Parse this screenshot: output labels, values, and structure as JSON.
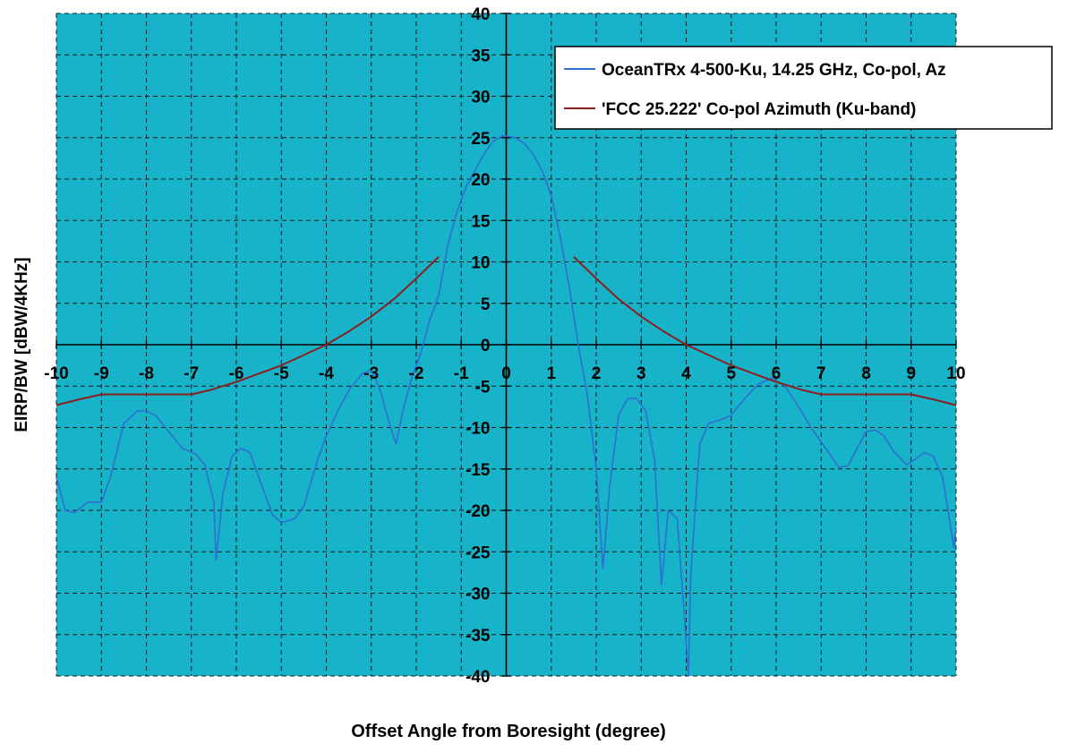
{
  "chart_data": {
    "type": "line",
    "title": "",
    "xlabel": "Offset Angle from Boresight (degree)",
    "ylabel": "EIRP/BW [dBW/4KHz]",
    "xlim": [
      -10,
      10
    ],
    "ylim": [
      -40,
      40
    ],
    "x_ticks": [
      -10,
      -9,
      -8,
      -7,
      -6,
      -5,
      -4,
      -3,
      -2,
      -1,
      0,
      1,
      2,
      3,
      4,
      5,
      6,
      7,
      8,
      9,
      10
    ],
    "y_ticks": [
      -40,
      -35,
      -30,
      -25,
      -20,
      -15,
      -10,
      -5,
      0,
      5,
      10,
      15,
      20,
      25,
      30,
      35,
      40
    ],
    "grid": true,
    "plot_background": "#17b3c8",
    "legend_position": "top-right",
    "series": [
      {
        "name": "OceanTRx 4-500-Ku, 14.25 GHz, Co-pol, Az",
        "color": "#2f6fd2",
        "points": [
          [
            -10,
            -16
          ],
          [
            -9.8,
            -20
          ],
          [
            -9.6,
            -20.3
          ],
          [
            -9.3,
            -19
          ],
          [
            -9.0,
            -19
          ],
          [
            -8.8,
            -16
          ],
          [
            -8.5,
            -9.5
          ],
          [
            -8.2,
            -8
          ],
          [
            -8.0,
            -8
          ],
          [
            -7.8,
            -8.5
          ],
          [
            -7.5,
            -10.5
          ],
          [
            -7.2,
            -12.5
          ],
          [
            -6.9,
            -13.2
          ],
          [
            -6.7,
            -14.5
          ],
          [
            -6.5,
            -19
          ],
          [
            -6.45,
            -26
          ],
          [
            -6.3,
            -18
          ],
          [
            -6.1,
            -13.5
          ],
          [
            -5.9,
            -12.5
          ],
          [
            -5.7,
            -13
          ],
          [
            -5.5,
            -16
          ],
          [
            -5.2,
            -20.5
          ],
          [
            -5.0,
            -21.5
          ],
          [
            -4.7,
            -21
          ],
          [
            -4.5,
            -19.5
          ],
          [
            -4.2,
            -14
          ],
          [
            -4.0,
            -11
          ],
          [
            -3.7,
            -7.5
          ],
          [
            -3.5,
            -5.5
          ],
          [
            -3.2,
            -3.5
          ],
          [
            -3.0,
            -3
          ],
          [
            -2.8,
            -5.5
          ],
          [
            -2.6,
            -9.5
          ],
          [
            -2.45,
            -12
          ],
          [
            -2.3,
            -8
          ],
          [
            -2.1,
            -4
          ],
          [
            -1.9,
            -1
          ],
          [
            -1.7,
            3
          ],
          [
            -1.5,
            6
          ],
          [
            -1.3,
            12
          ],
          [
            -1.1,
            16
          ],
          [
            -0.9,
            19
          ],
          [
            -0.7,
            21
          ],
          [
            -0.5,
            23
          ],
          [
            -0.3,
            24.5
          ],
          [
            -0.1,
            25.2
          ],
          [
            0,
            25.2
          ],
          [
            0.2,
            25
          ],
          [
            0.4,
            24.3
          ],
          [
            0.6,
            23
          ],
          [
            0.8,
            21
          ],
          [
            1.0,
            18
          ],
          [
            1.2,
            13
          ],
          [
            1.4,
            7
          ],
          [
            1.6,
            0
          ],
          [
            1.8,
            -6
          ],
          [
            2.0,
            -15
          ],
          [
            2.15,
            -27
          ],
          [
            2.3,
            -17
          ],
          [
            2.5,
            -8.5
          ],
          [
            2.7,
            -6.5
          ],
          [
            2.9,
            -6.5
          ],
          [
            3.1,
            -8
          ],
          [
            3.3,
            -14
          ],
          [
            3.45,
            -29
          ],
          [
            3.6,
            -20
          ],
          [
            3.8,
            -21
          ],
          [
            3.95,
            -32
          ],
          [
            4.05,
            -40
          ],
          [
            4.1,
            -28
          ],
          [
            4.3,
            -12
          ],
          [
            4.5,
            -9.5
          ],
          [
            4.8,
            -9
          ],
          [
            5.0,
            -8.5
          ],
          [
            5.3,
            -6.5
          ],
          [
            5.6,
            -4.8
          ],
          [
            5.9,
            -4
          ],
          [
            6.2,
            -5
          ],
          [
            6.5,
            -7.5
          ],
          [
            6.8,
            -10.2
          ],
          [
            7.1,
            -12.5
          ],
          [
            7.4,
            -14.8
          ],
          [
            7.6,
            -14.6
          ],
          [
            7.8,
            -12.5
          ],
          [
            8.0,
            -10.5
          ],
          [
            8.2,
            -10.3
          ],
          [
            8.4,
            -11
          ],
          [
            8.6,
            -12.8
          ],
          [
            8.9,
            -14.5
          ],
          [
            9.1,
            -13.8
          ],
          [
            9.3,
            -13
          ],
          [
            9.5,
            -13.5
          ],
          [
            9.7,
            -16
          ],
          [
            9.85,
            -21
          ],
          [
            9.95,
            -24.5
          ],
          [
            10.0,
            -22
          ]
        ]
      },
      {
        "name": "'FCC 25.222' Co-pol Azimuth (Ku-band)",
        "color": "#8b1f1f",
        "points": [
          [
            -10,
            -7.3
          ],
          [
            -9.5,
            -6.6
          ],
          [
            -9,
            -6
          ],
          [
            -8,
            -6
          ],
          [
            -7,
            -6
          ],
          [
            -6.6,
            -5.5
          ],
          [
            -6,
            -4.5
          ],
          [
            -5,
            -2.5
          ],
          [
            -4,
            0
          ],
          [
            -3.5,
            1.6
          ],
          [
            -3,
            3.4
          ],
          [
            -2.5,
            5.5
          ],
          [
            -2,
            8
          ],
          [
            -1.5,
            10.6
          ]
        ]
      },
      {
        "name": "",
        "color": "#8b1f1f",
        "points": [
          [
            1.5,
            10.6
          ],
          [
            2,
            8
          ],
          [
            2.5,
            5.5
          ],
          [
            3,
            3.4
          ],
          [
            3.5,
            1.6
          ],
          [
            4,
            0
          ],
          [
            5,
            -2.5
          ],
          [
            6,
            -4.5
          ],
          [
            6.6,
            -5.5
          ],
          [
            7,
            -6
          ],
          [
            8,
            -6
          ],
          [
            9,
            -6
          ],
          [
            9.5,
            -6.6
          ],
          [
            10,
            -7.3
          ]
        ]
      }
    ]
  }
}
